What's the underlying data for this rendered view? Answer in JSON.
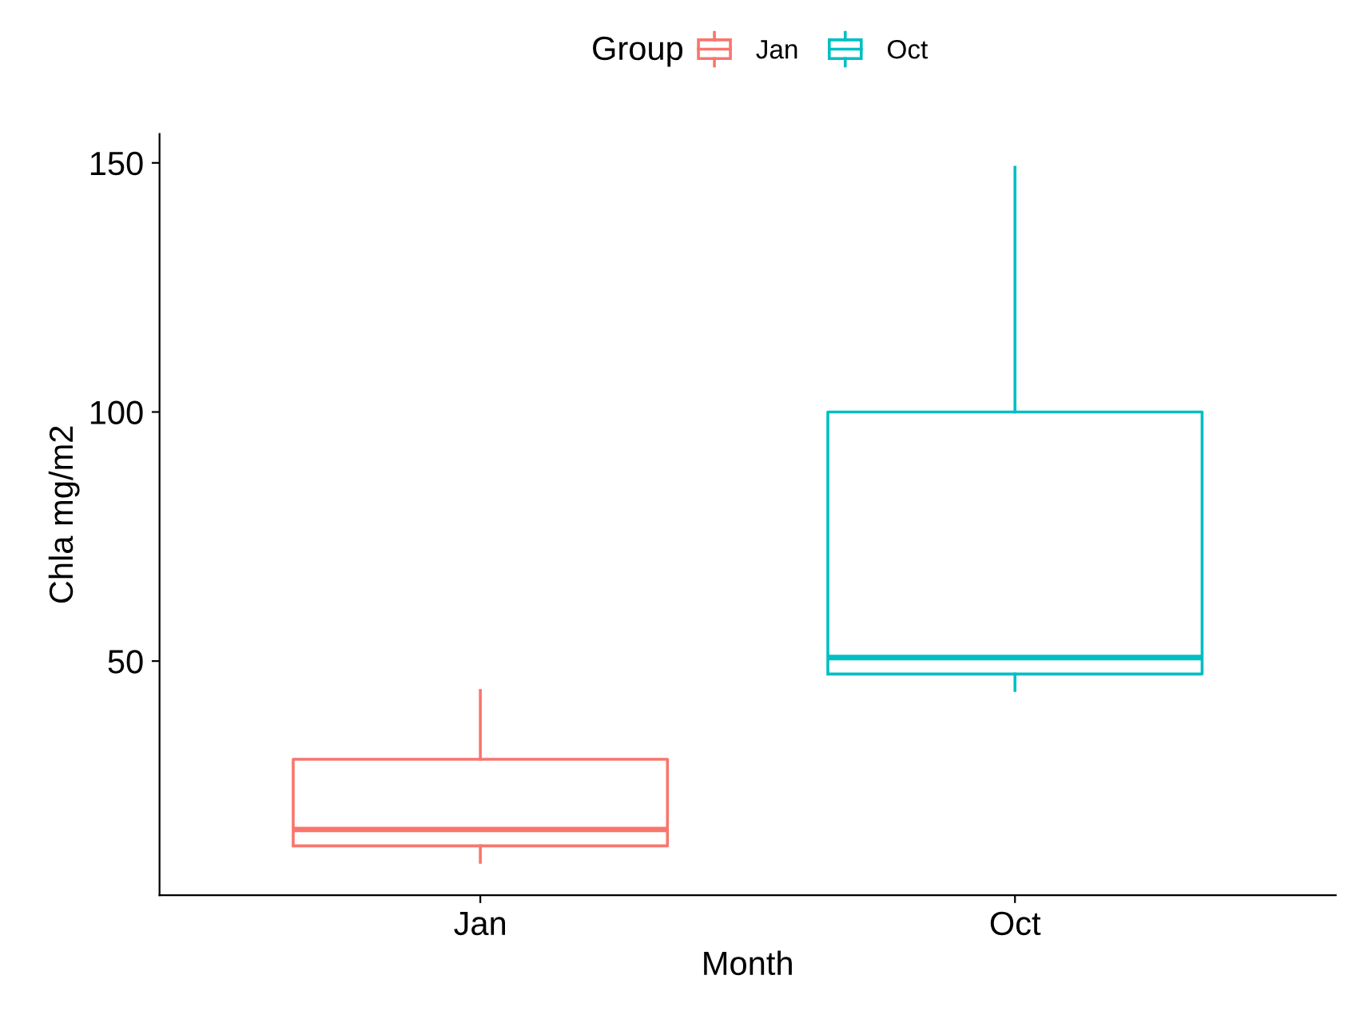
{
  "chart_data": {
    "type": "box",
    "xlabel": "Month",
    "ylabel": "Chla mg/m2",
    "legend_title": "Group",
    "legend": "top",
    "grid": false,
    "categories": [
      "Jan",
      "Oct"
    ],
    "series": [
      {
        "name": "Jan",
        "color": "#f8766d",
        "boxes": [
          {
            "low": 9.6,
            "q1": 12.9,
            "median": 16.2,
            "q3": 30.3,
            "high": 44.1
          },
          null
        ]
      },
      {
        "name": "Oct",
        "color": "#00bfc4",
        "boxes": [
          null,
          {
            "low": 44.1,
            "q1": 47.4,
            "median": 50.7,
            "q3": 100,
            "high": 149.1
          }
        ]
      }
    ],
    "ylim": [
      3,
      155.8
    ],
    "yticks": [
      50,
      100,
      150
    ]
  }
}
